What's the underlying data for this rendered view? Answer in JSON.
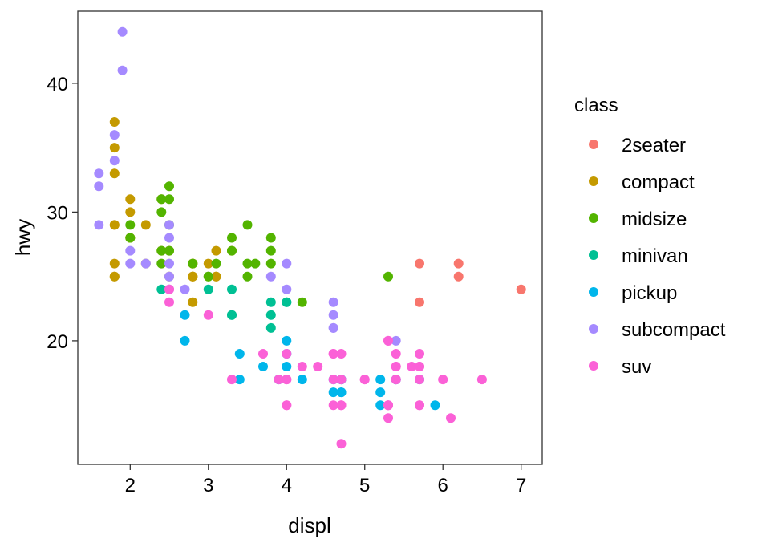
{
  "chart_data": {
    "type": "scatter",
    "xlabel": "displ",
    "ylabel": "hwy",
    "xlim": [
      1.33,
      7.27
    ],
    "ylim": [
      10.4,
      45.6
    ],
    "xticks": [
      2,
      3,
      4,
      5,
      6,
      7
    ],
    "yticks": [
      20,
      30,
      40
    ],
    "grid": false,
    "legend_title": "class",
    "legend_position": "right",
    "series": [
      {
        "name": "2seater",
        "color": "#F8766D",
        "points": [
          [
            5.7,
            26
          ],
          [
            5.7,
            23
          ],
          [
            6.2,
            26
          ],
          [
            6.2,
            25
          ],
          [
            7.0,
            24
          ]
        ]
      },
      {
        "name": "compact",
        "color": "#C49A00",
        "points": [
          [
            1.8,
            29
          ],
          [
            1.8,
            29
          ],
          [
            2.0,
            31
          ],
          [
            2.0,
            30
          ],
          [
            2.8,
            26
          ],
          [
            2.8,
            26
          ],
          [
            3.1,
            27
          ],
          [
            1.8,
            26
          ],
          [
            1.8,
            25
          ],
          [
            2.0,
            28
          ],
          [
            2.0,
            28
          ],
          [
            2.8,
            25
          ],
          [
            2.8,
            25
          ],
          [
            3.1,
            25
          ],
          [
            3.1,
            25
          ],
          [
            2.2,
            26
          ],
          [
            2.2,
            29
          ],
          [
            2.4,
            27
          ],
          [
            2.4,
            31
          ],
          [
            3.0,
            26
          ],
          [
            3.3,
            27
          ],
          [
            1.8,
            25
          ],
          [
            1.8,
            35
          ],
          [
            1.8,
            37
          ],
          [
            1.8,
            33
          ],
          [
            2.5,
            27
          ],
          [
            2.5,
            25
          ],
          [
            2.8,
            25
          ],
          [
            2.8,
            23
          ]
        ]
      },
      {
        "name": "midsize",
        "color": "#53B400",
        "points": [
          [
            2.4,
            27
          ],
          [
            2.4,
            30
          ],
          [
            3.1,
            26
          ],
          [
            3.5,
            29
          ],
          [
            3.6,
            26
          ],
          [
            2.0,
            28
          ],
          [
            2.0,
            29
          ],
          [
            2.5,
            32
          ],
          [
            2.5,
            31
          ],
          [
            2.8,
            26
          ],
          [
            3.0,
            25
          ],
          [
            2.4,
            31
          ],
          [
            2.4,
            26
          ],
          [
            2.5,
            27
          ],
          [
            2.5,
            29
          ],
          [
            3.3,
            28
          ],
          [
            3.3,
            27
          ],
          [
            3.5,
            26
          ],
          [
            3.5,
            25
          ],
          [
            3.8,
            26
          ],
          [
            3.8,
            28
          ],
          [
            3.8,
            27
          ],
          [
            4.2,
            23
          ],
          [
            5.3,
            25
          ],
          [
            3.0,
            25
          ]
        ]
      },
      {
        "name": "minivan",
        "color": "#00C094",
        "points": [
          [
            2.4,
            24
          ],
          [
            3.0,
            24
          ],
          [
            3.3,
            22
          ],
          [
            3.3,
            24
          ],
          [
            3.3,
            22
          ],
          [
            3.8,
            22
          ],
          [
            3.8,
            21
          ],
          [
            3.8,
            23
          ],
          [
            4.0,
            23
          ],
          [
            4.0,
            23
          ]
        ]
      },
      {
        "name": "pickup",
        "color": "#00B6EB",
        "points": [
          [
            2.7,
            20
          ],
          [
            2.7,
            22
          ],
          [
            3.4,
            17
          ],
          [
            3.4,
            19
          ],
          [
            3.7,
            18
          ],
          [
            4.0,
            20
          ],
          [
            4.0,
            18
          ],
          [
            4.7,
            16
          ],
          [
            4.7,
            16
          ],
          [
            4.7,
            17
          ],
          [
            5.2,
            17
          ],
          [
            5.2,
            15
          ],
          [
            5.7,
            17
          ],
          [
            5.9,
            15
          ],
          [
            4.7,
            17
          ],
          [
            4.6,
            17
          ],
          [
            4.6,
            16
          ],
          [
            5.4,
            17
          ],
          [
            5.2,
            16
          ],
          [
            5.4,
            17
          ],
          [
            4.2,
            17
          ],
          [
            3.9,
            17
          ],
          [
            4.0,
            19
          ]
        ]
      },
      {
        "name": "subcompact",
        "color": "#A58AFF",
        "points": [
          [
            1.6,
            33
          ],
          [
            1.6,
            32
          ],
          [
            1.6,
            29
          ],
          [
            1.8,
            34
          ],
          [
            1.8,
            36
          ],
          [
            1.9,
            44
          ],
          [
            1.9,
            41
          ],
          [
            2.0,
            27
          ],
          [
            2.0,
            26
          ],
          [
            2.5,
            28
          ],
          [
            2.5,
            26
          ],
          [
            2.5,
            29
          ],
          [
            2.5,
            24
          ],
          [
            2.5,
            25
          ],
          [
            2.2,
            26
          ],
          [
            2.7,
            24
          ],
          [
            3.8,
            25
          ],
          [
            4.0,
            26
          ],
          [
            4.0,
            24
          ],
          [
            4.6,
            23
          ],
          [
            4.6,
            22
          ],
          [
            4.6,
            21
          ],
          [
            5.4,
            20
          ],
          [
            4.6,
            21
          ]
        ]
      },
      {
        "name": "suv",
        "color": "#FB61D7",
        "points": [
          [
            5.3,
            20
          ],
          [
            5.3,
            15
          ],
          [
            5.3,
            20
          ],
          [
            5.7,
            17
          ],
          [
            6.0,
            17
          ],
          [
            5.7,
            15
          ],
          [
            6.5,
            17
          ],
          [
            4.7,
            17
          ],
          [
            4.7,
            12
          ],
          [
            5.7,
            19
          ],
          [
            6.1,
            14
          ],
          [
            5.3,
            15
          ],
          [
            5.4,
            17
          ],
          [
            4.2,
            18
          ],
          [
            4.4,
            18
          ],
          [
            4.6,
            19
          ],
          [
            4.7,
            19
          ],
          [
            5.4,
            17
          ],
          [
            5.7,
            18
          ],
          [
            4.0,
            17
          ],
          [
            4.0,
            17
          ],
          [
            4.0,
            15
          ],
          [
            4.6,
            17
          ],
          [
            5.0,
            17
          ],
          [
            5.4,
            18
          ],
          [
            5.4,
            18
          ],
          [
            5.7,
            15
          ],
          [
            5.4,
            19
          ],
          [
            4.7,
            15
          ],
          [
            4.7,
            15
          ],
          [
            3.7,
            19
          ],
          [
            3.3,
            17
          ],
          [
            3.9,
            17
          ],
          [
            4.0,
            15
          ],
          [
            4.0,
            19
          ],
          [
            2.5,
            23
          ],
          [
            2.5,
            24
          ],
          [
            3.0,
            22
          ],
          [
            4.6,
            15
          ],
          [
            4.6,
            19
          ],
          [
            5.0,
            17
          ],
          [
            5.6,
            18
          ],
          [
            5.3,
            14
          ],
          [
            5.3,
            15
          ],
          [
            5.7,
            18
          ]
        ]
      }
    ]
  }
}
